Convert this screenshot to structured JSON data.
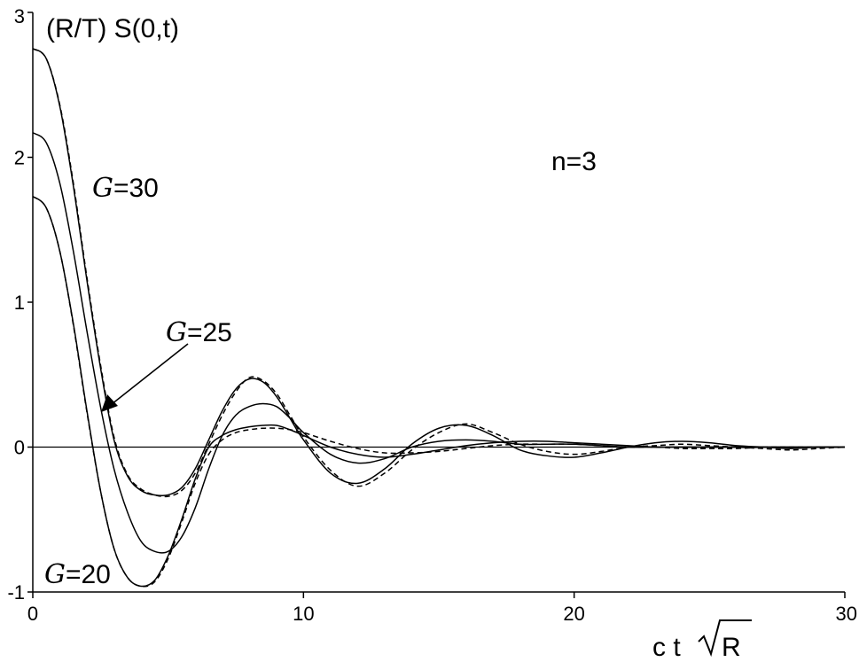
{
  "chart_data": {
    "type": "line",
    "ylabel": "(R/T) S(0,t)",
    "xlabel_parts": {
      "prefix": "c t",
      "radicand": "R"
    },
    "xlim": [
      0,
      30
    ],
    "ylim": [
      -1,
      3
    ],
    "xticks": [
      0,
      10,
      20,
      30
    ],
    "yticks": [
      -1,
      0,
      1,
      2,
      3
    ],
    "grid": false,
    "annotations": {
      "n_label": "n=3",
      "curve_labels": [
        {
          "symbol": "G",
          "text": "=30"
        },
        {
          "symbol": "G",
          "text": "=25"
        },
        {
          "symbol": "G",
          "text": "=20"
        }
      ]
    },
    "series": [
      {
        "style": "solid",
        "x": [
          0,
          0.5,
          1,
          1.5,
          2,
          2.5,
          3,
          3.5,
          4,
          4.5,
          5,
          5.5,
          6,
          6.5,
          7,
          7.5,
          8,
          8.5,
          9,
          9.5,
          10,
          11,
          12,
          13,
          14,
          15,
          16,
          17,
          18,
          19,
          20,
          21,
          22,
          23,
          24,
          25,
          26,
          27,
          28,
          29,
          30
        ],
        "y": [
          2.75,
          2.68,
          2.35,
          1.8,
          1.15,
          0.55,
          0.05,
          -0.2,
          -0.3,
          -0.33,
          -0.33,
          -0.28,
          -0.15,
          0.05,
          0.25,
          0.4,
          0.47,
          0.45,
          0.35,
          0.2,
          0.05,
          -0.18,
          -0.25,
          -0.15,
          0.02,
          0.13,
          0.15,
          0.08,
          -0.02,
          -0.06,
          -0.07,
          -0.04,
          0.0,
          0.03,
          0.04,
          0.03,
          0.01,
          0.0,
          -0.01,
          0.0,
          0.0
        ]
      },
      {
        "style": "dashed",
        "x": [
          0,
          0.5,
          1,
          1.5,
          2,
          2.5,
          3,
          3.5,
          4,
          4.5,
          5,
          5.5,
          6,
          6.5,
          7,
          7.5,
          8,
          8.5,
          9,
          9.5,
          10,
          11,
          12,
          13,
          14,
          15,
          16,
          17,
          18,
          19,
          20,
          21,
          22,
          23,
          24,
          25,
          26,
          27,
          28,
          29,
          30
        ],
        "y": [
          2.75,
          2.68,
          2.36,
          1.82,
          1.17,
          0.57,
          0.07,
          -0.19,
          -0.29,
          -0.33,
          -0.34,
          -0.3,
          -0.18,
          0.02,
          0.22,
          0.38,
          0.48,
          0.46,
          0.37,
          0.22,
          0.07,
          -0.16,
          -0.27,
          -0.18,
          -0.02,
          0.1,
          0.16,
          0.1,
          0.02,
          -0.03,
          -0.05,
          -0.03,
          0.0,
          0.01,
          0.02,
          0.01,
          0.0,
          -0.01,
          -0.02,
          -0.01,
          0.0
        ]
      },
      {
        "style": "solid",
        "x": [
          0,
          0.5,
          1,
          1.5,
          2,
          2.5,
          3,
          3.5,
          4,
          4.5,
          5,
          5.5,
          6,
          6.5,
          7,
          7.5,
          8,
          8.5,
          9,
          9.5,
          10,
          11,
          12,
          13,
          14,
          15,
          16,
          17,
          18,
          19,
          20,
          21,
          22,
          23,
          24,
          25,
          26,
          27,
          28,
          29,
          30
        ],
        "y": [
          2.17,
          2.1,
          1.82,
          1.35,
          0.8,
          0.28,
          -0.15,
          -0.45,
          -0.65,
          -0.72,
          -0.72,
          -0.62,
          -0.42,
          -0.15,
          0.08,
          0.22,
          0.28,
          0.3,
          0.28,
          0.2,
          0.1,
          -0.05,
          -0.11,
          -0.08,
          0.0,
          0.04,
          0.05,
          0.04,
          0.02,
          0.02,
          0.02,
          0.01,
          0.0,
          0.0,
          0.0,
          0.0,
          0.0,
          0.0,
          0.0,
          0.0,
          0.0
        ]
      },
      {
        "style": "solid",
        "x": [
          0,
          0.5,
          1,
          1.5,
          2,
          2.5,
          3,
          3.5,
          4,
          4.5,
          5,
          5.5,
          6,
          6.5,
          7,
          7.5,
          8,
          8.5,
          9,
          9.5,
          10,
          11,
          12,
          13,
          14,
          15,
          16,
          17,
          18,
          19,
          20,
          21,
          22,
          23,
          24,
          25,
          26,
          27,
          28,
          29,
          30
        ],
        "y": [
          1.73,
          1.65,
          1.35,
          0.85,
          0.25,
          -0.3,
          -0.7,
          -0.9,
          -0.96,
          -0.92,
          -0.75,
          -0.5,
          -0.22,
          0.0,
          0.08,
          0.12,
          0.14,
          0.15,
          0.15,
          0.12,
          0.08,
          0.0,
          -0.05,
          -0.07,
          -0.05,
          -0.02,
          0.01,
          0.03,
          0.04,
          0.04,
          0.03,
          0.02,
          0.01,
          0.0,
          0.0,
          0.0,
          0.0,
          0.0,
          0.0,
          0.0,
          0.0
        ]
      },
      {
        "style": "dashed",
        "x": [
          0,
          0.5,
          1,
          1.5,
          2,
          2.5,
          3,
          3.5,
          4,
          4.5,
          5,
          5.5,
          6,
          6.5,
          7,
          7.5,
          8,
          8.5,
          9,
          9.5,
          10,
          11,
          12,
          13,
          14,
          15,
          16,
          17,
          18,
          19,
          20,
          21,
          22,
          23,
          24,
          25,
          26,
          27,
          28,
          29,
          30
        ],
        "y": [
          1.73,
          1.65,
          1.35,
          0.84,
          0.24,
          -0.3,
          -0.7,
          -0.9,
          -0.96,
          -0.93,
          -0.77,
          -0.52,
          -0.25,
          -0.05,
          0.05,
          0.1,
          0.12,
          0.13,
          0.13,
          0.12,
          0.1,
          0.04,
          -0.01,
          -0.04,
          -0.04,
          -0.03,
          -0.01,
          0.01,
          0.02,
          0.02,
          0.02,
          0.01,
          0.0,
          0.0,
          -0.01,
          -0.01,
          -0.01,
          0.0,
          0.0,
          0.0,
          0.0
        ]
      }
    ]
  }
}
